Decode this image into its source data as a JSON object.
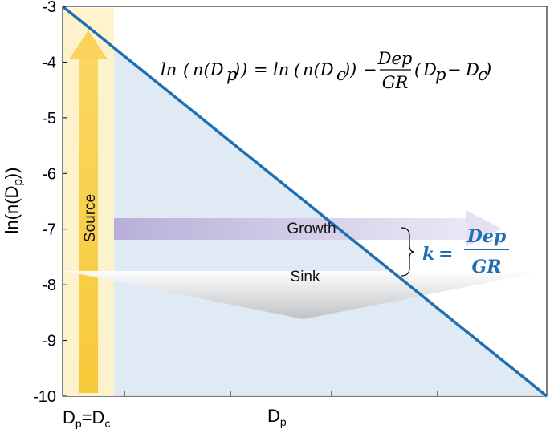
{
  "chart_data": {
    "type": "line",
    "x": [
      "Dp=Dc",
      "Dp"
    ],
    "series": [
      {
        "x": [
          0,
          1
        ],
        "values": [
          -3,
          -10
        ]
      }
    ],
    "ylim": [
      -10,
      -3
    ],
    "yticks": [
      "-3",
      "-4",
      "-5",
      "-6",
      "-7",
      "-8",
      "-9",
      "-10"
    ],
    "xtick_labels": {
      "left": {
        "main": "D",
        "sub": "p",
        "rest": "=D",
        "sub2": "c"
      },
      "mid": {
        "main": "D",
        "sub": "p"
      }
    },
    "ylabel": {
      "pre": "ln(n(D",
      "sub": "p",
      "post": "))"
    },
    "grid": false,
    "annotations": {
      "source": "Source",
      "growth": "Growth",
      "sink": "Sink",
      "equation": "ln(n(Dp)) = ln(n(Dc)) − Dep/GR (Dp − Dc)",
      "k_equation": "k = Dep/GR"
    },
    "colors": {
      "line": "#1f6fb2",
      "fill": "#dce8f4",
      "source": "#f8cf4a",
      "growth": "#b9afd6",
      "sink": "#c9c9c9",
      "k_text": "#1f6fb2"
    }
  }
}
